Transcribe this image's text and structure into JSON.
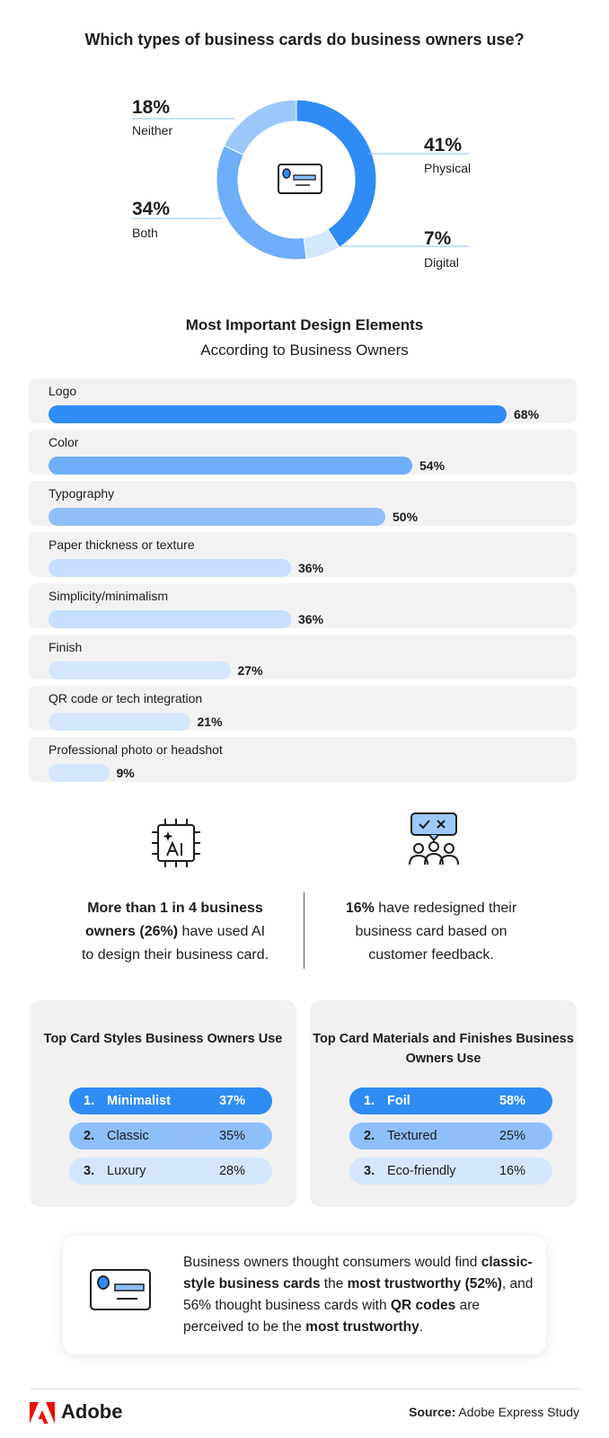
{
  "donut": {
    "title": "Which types of business cards do business owners use?",
    "icon": "business-card-icon"
  },
  "bars": {
    "title": "Most Important Design Elements",
    "subtitle": "According to Business Owners"
  },
  "chart_data": [
    {
      "type": "pie",
      "title": "Which types of business cards do business owners use?",
      "labels": [
        "Physical",
        "Digital",
        "Both",
        "Neither"
      ],
      "values": [
        41,
        7,
        34,
        18
      ],
      "display": [
        "41%",
        "7%",
        "34%",
        "18%"
      ],
      "colors": [
        "#2f8cf4",
        "#d4e6fd",
        "#6faefb",
        "#9cc8fb"
      ]
    },
    {
      "type": "bar",
      "title": "Most Important Design Elements",
      "subtitle": "According to Business Owners",
      "categories": [
        "Logo",
        "Color",
        "Typography",
        "Paper thickness or texture",
        "Simplicity/minimalism",
        "Finish",
        "QR code or tech integration",
        "Professional photo or headshot"
      ],
      "values": [
        68,
        54,
        50,
        36,
        36,
        27,
        21,
        9
      ],
      "display": [
        "68%",
        "54%",
        "50%",
        "36%",
        "36%",
        "27%",
        "21%",
        "9%"
      ],
      "colors": [
        "#2f8cf4",
        "#6faefb",
        "#8fbffb",
        "#c6deff",
        "#c6deff",
        "#d4e6fd",
        "#d4e6fd",
        "#d4e6fd"
      ]
    }
  ],
  "stats": {
    "ai_icon": "ai-chip-icon",
    "ai_text_bold": "More than 1 in 4 business owners (26%)",
    "ai_text_rest": " have used AI to design their business card.",
    "feedback_icon": "feedback-people-icon",
    "feedback_bold": "16%",
    "feedback_rest": " have redesigned their business card based on customer feedback."
  },
  "styles": {
    "title": "Top Card Styles Business Owners Use",
    "items": [
      {
        "rank": "1.",
        "name": "Minimalist",
        "value": "37%"
      },
      {
        "rank": "2.",
        "name": "Classic",
        "value": "35%"
      },
      {
        "rank": "3.",
        "name": "Luxury",
        "value": "28%"
      }
    ]
  },
  "materials": {
    "title": "Top Card Materials and Finishes Business Owners Use",
    "items": [
      {
        "rank": "1.",
        "name": "Foil",
        "value": "58%"
      },
      {
        "rank": "2.",
        "name": "Textured",
        "value": "25%"
      },
      {
        "rank": "3.",
        "name": "Eco-friendly",
        "value": "16%"
      }
    ]
  },
  "note": {
    "t1": "Business owners thought consumers would find ",
    "b1": "classic-style business cards",
    "t2": " the ",
    "b2": "most trustworthy (52%)",
    "t3": ", and 56% thought business cards with ",
    "b3": "QR codes",
    "t4": " are perceived to be the ",
    "b4": "most trustworthy",
    "t5": "."
  },
  "footer": {
    "brand": "Adobe",
    "source_label": "Source:",
    "source_value": " Adobe Express Study"
  },
  "colors": {
    "blue": "#2f8cf4",
    "blue_mid": "#6faefb",
    "blue_light": "#c6deff",
    "blue_pale": "#d4e6fd",
    "adobe_red": "#eb1000"
  }
}
